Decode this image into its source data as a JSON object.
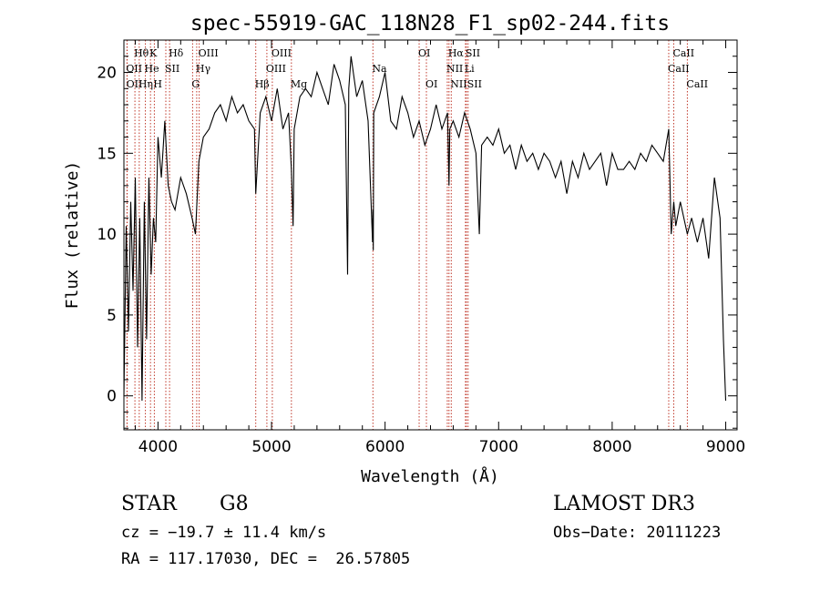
{
  "chart_data": {
    "type": "line",
    "title": "spec-55919-GAC_118N28_F1_sp02-244.fits",
    "xlabel": "Wavelength (Å)",
    "ylabel": "Flux (relative)",
    "xlim": [
      3700,
      9100
    ],
    "ylim": [
      -2.1,
      22.0
    ],
    "x_ticks": [
      4000,
      5000,
      6000,
      7000,
      8000,
      9000
    ],
    "x_tick_labels": [
      "4000",
      "5000",
      "6000",
      "7000",
      "8000",
      "9000"
    ],
    "y_ticks": [
      0,
      5,
      10,
      15,
      20
    ],
    "y_tick_labels": [
      "0",
      "5",
      "10",
      "15",
      "20"
    ],
    "grid": false,
    "line_color": "#000000",
    "marker_color": "#c0392b",
    "series": [
      {
        "name": "flux",
        "x": [
          3700,
          3720,
          3740,
          3760,
          3780,
          3800,
          3820,
          3840,
          3860,
          3880,
          3900,
          3920,
          3940,
          3960,
          3980,
          4000,
          4030,
          4060,
          4090,
          4120,
          4150,
          4200,
          4250,
          4300,
          4330,
          4360,
          4400,
          4450,
          4500,
          4550,
          4600,
          4650,
          4700,
          4750,
          4800,
          4850,
          4861,
          4900,
          4950,
          5000,
          5050,
          5100,
          5150,
          5175,
          5190,
          5200,
          5250,
          5300,
          5350,
          5400,
          5450,
          5500,
          5550,
          5600,
          5650,
          5670,
          5680,
          5700,
          5750,
          5800,
          5850,
          5890,
          5893,
          5896,
          5900,
          5950,
          6000,
          6050,
          6100,
          6150,
          6200,
          6250,
          6300,
          6350,
          6400,
          6450,
          6500,
          6550,
          6563,
          6570,
          6600,
          6650,
          6700,
          6750,
          6800,
          6830,
          6850,
          6900,
          6950,
          7000,
          7050,
          7100,
          7150,
          7200,
          7250,
          7300,
          7350,
          7400,
          7450,
          7500,
          7550,
          7600,
          7650,
          7700,
          7750,
          7800,
          7850,
          7900,
          7950,
          8000,
          8050,
          8100,
          8150,
          8200,
          8250,
          8300,
          8350,
          8400,
          8450,
          8498,
          8520,
          8542,
          8560,
          8600,
          8662,
          8700,
          8750,
          8800,
          8850,
          8900,
          8950,
          8980,
          9000
        ],
        "y": [
          0.0,
          10.5,
          4.0,
          12.0,
          6.5,
          13.5,
          3.0,
          11.0,
          -0.3,
          12.0,
          3.5,
          13.5,
          7.5,
          11.0,
          9.5,
          16.0,
          13.5,
          17.0,
          13.0,
          12.0,
          11.5,
          13.5,
          12.5,
          11.0,
          10.0,
          14.5,
          16.0,
          16.5,
          17.5,
          18.0,
          17.0,
          18.5,
          17.5,
          18.0,
          17.0,
          16.5,
          12.5,
          17.5,
          18.5,
          17.0,
          19.0,
          16.5,
          17.5,
          14.0,
          10.5,
          16.5,
          18.5,
          19.0,
          18.5,
          20.0,
          19.0,
          18.0,
          20.5,
          19.5,
          18.0,
          7.5,
          19.0,
          21.0,
          18.5,
          19.5,
          17.0,
          9.5,
          11.5,
          9.0,
          17.5,
          18.5,
          20.0,
          17.0,
          16.5,
          18.5,
          17.5,
          16.0,
          17.0,
          15.5,
          16.5,
          18.0,
          16.5,
          17.5,
          13.0,
          16.5,
          17.0,
          16.0,
          17.5,
          16.5,
          15.0,
          10.0,
          15.5,
          16.0,
          15.5,
          16.5,
          15.0,
          15.5,
          14.0,
          15.5,
          14.5,
          15.0,
          14.0,
          15.0,
          14.5,
          13.5,
          14.5,
          12.5,
          14.5,
          13.5,
          15.0,
          14.0,
          14.5,
          15.0,
          13.0,
          15.0,
          14.0,
          14.0,
          14.5,
          14.0,
          15.0,
          14.5,
          15.5,
          15.0,
          14.5,
          16.5,
          10.0,
          12.0,
          10.5,
          12.0,
          10.0,
          11.0,
          9.5,
          11.0,
          8.5,
          13.5,
          11.0,
          3.5,
          -0.3
        ]
      }
    ],
    "lines": [
      {
        "label": "Hθ",
        "wavelength": 3797,
        "row": 1
      },
      {
        "label": "OII",
        "wavelength": 3727,
        "row": 2
      },
      {
        "label": "OII",
        "wavelength": 3729,
        "row": 3
      },
      {
        "label": "He",
        "wavelength": 3889,
        "row": 2
      },
      {
        "label": "Hη",
        "wavelength": 3835,
        "row": 3
      },
      {
        "label": "K",
        "wavelength": 3934,
        "row": 1
      },
      {
        "label": "SII",
        "wavelength": 4069,
        "row": 2
      },
      {
        "label": "H",
        "wavelength": 3968,
        "row": 3
      },
      {
        "label": "Hδ",
        "wavelength": 4102,
        "row": 1
      },
      {
        "label": "OIII",
        "wavelength": 4363,
        "row": 1
      },
      {
        "label": "Hγ",
        "wavelength": 4341,
        "row": 2
      },
      {
        "label": "G",
        "wavelength": 4305,
        "row": 3
      },
      {
        "label": "Hβ",
        "wavelength": 4861,
        "row": 3
      },
      {
        "label": "OIII",
        "wavelength": 5007,
        "row": 1
      },
      {
        "label": "OIII",
        "wavelength": 4959,
        "row": 2
      },
      {
        "label": "Mg",
        "wavelength": 5175,
        "row": 3
      },
      {
        "label": "Na",
        "wavelength": 5893,
        "row": 2
      },
      {
        "label": "OI",
        "wavelength": 6300,
        "row": 1
      },
      {
        "label": "OI",
        "wavelength": 6364,
        "row": 3
      },
      {
        "label": "Hα",
        "wavelength": 6563,
        "row": 1
      },
      {
        "label": "SII",
        "wavelength": 6716,
        "row": 1
      },
      {
        "label": "NII",
        "wavelength": 6548,
        "row": 2
      },
      {
        "label": "Li",
        "wavelength": 6708,
        "row": 2
      },
      {
        "label": "NII",
        "wavelength": 6583,
        "row": 3
      },
      {
        "label": "SII",
        "wavelength": 6731,
        "row": 3
      },
      {
        "label": "CaII",
        "wavelength": 8542,
        "row": 1
      },
      {
        "label": "CaII",
        "wavelength": 8498,
        "row": 2
      },
      {
        "label": "CaII",
        "wavelength": 8662,
        "row": 3
      }
    ]
  },
  "info": {
    "object_type": "STAR",
    "subclass": "G8",
    "survey": "LAMOST DR3",
    "redshift": "cz = −19.7 ± 11.4 km/s",
    "obs_date": "Obs−Date: 20111223",
    "coords": "RA = 117.17030, DEC =  26.57805"
  }
}
